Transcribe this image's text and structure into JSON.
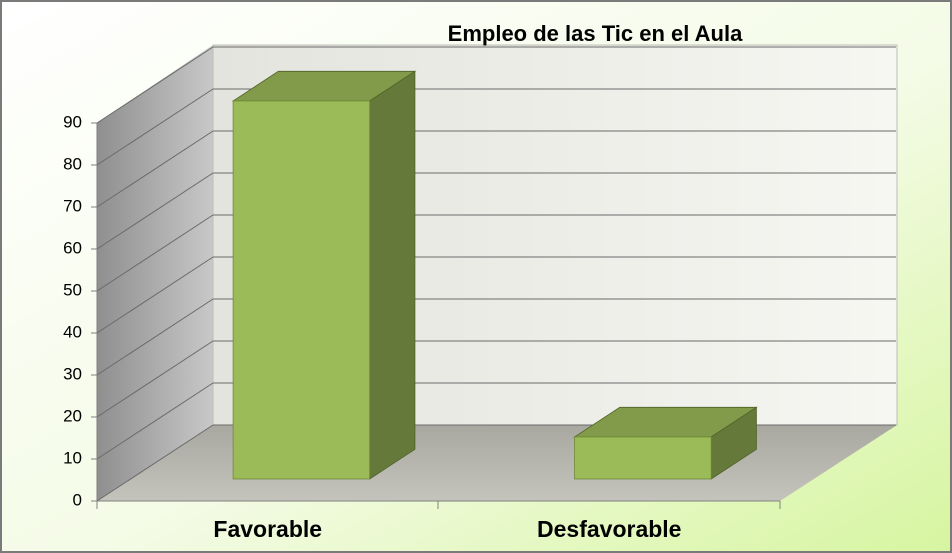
{
  "chart_data": {
    "type": "bar",
    "title": "Empleo de las  Tic en el Aula",
    "categories": [
      "Favorable",
      "Desfavorable"
    ],
    "values": [
      90,
      10
    ],
    "color": "#9bbb59",
    "ylim": [
      0,
      90
    ],
    "yticks": [
      0,
      10,
      20,
      30,
      40,
      50,
      60,
      70,
      80,
      90
    ],
    "grid": true
  }
}
